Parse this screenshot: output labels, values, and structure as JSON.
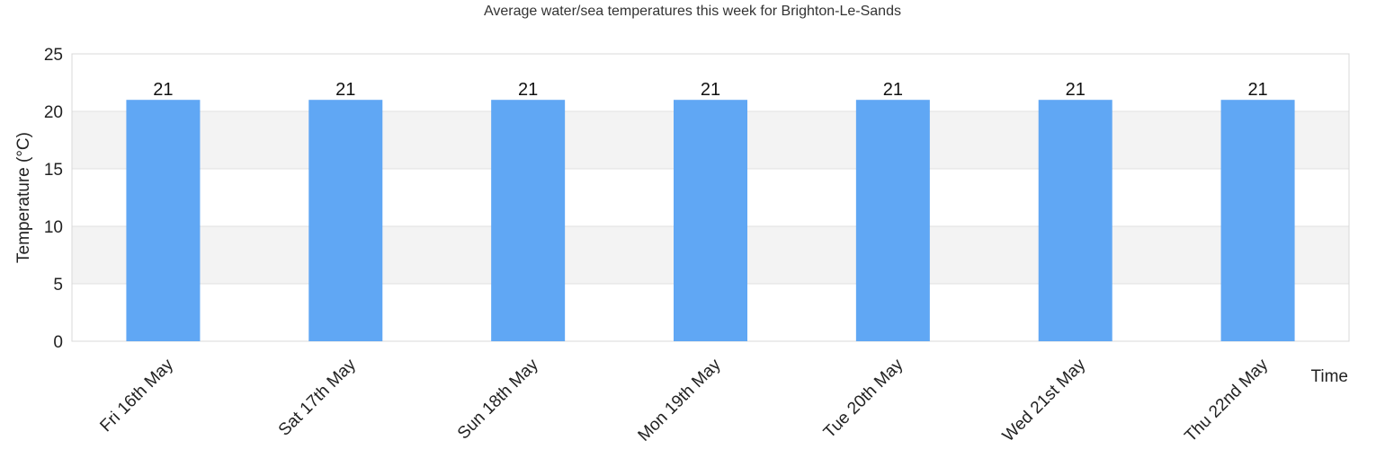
{
  "chart_data": {
    "type": "bar",
    "title": "Average water/sea temperatures this week for Brighton-Le-Sands",
    "xlabel": "Time",
    "ylabel": "Temperature (°C)",
    "categories": [
      "Fri 16th May",
      "Sat 17th May",
      "Sun 18th May",
      "Mon 19th May",
      "Tue 20th May",
      "Wed 21st May",
      "Thu 22nd May"
    ],
    "values": [
      21,
      21,
      21,
      21,
      21,
      21,
      21
    ],
    "data_labels": [
      "21",
      "21",
      "21",
      "21",
      "21",
      "21",
      "21"
    ],
    "ylim": [
      0,
      25
    ],
    "yticks": [
      0,
      5,
      10,
      15,
      20,
      25
    ],
    "grid": true,
    "alternating_bands": true,
    "legend": "none",
    "colors": {
      "bar": "#60a7f4",
      "band": "#f3f3f3",
      "grid": "#e0e0e0"
    }
  }
}
